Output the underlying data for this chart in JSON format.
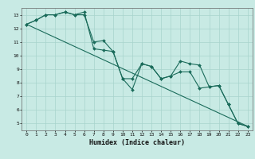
{
  "title": "",
  "xlabel": "Humidex (Indice chaleur)",
  "ylabel": "",
  "background_color": "#c8eae4",
  "grid_color": "#a8d4cc",
  "line_color": "#1a6b5a",
  "series1_x": [
    0,
    1,
    2,
    3,
    4,
    5,
    6,
    7,
    8,
    9,
    10,
    11,
    12,
    13,
    14,
    15,
    16,
    17,
    18,
    19,
    20,
    21,
    22,
    23
  ],
  "series1_y": [
    12.3,
    12.6,
    13.0,
    13.0,
    13.2,
    13.0,
    13.2,
    10.5,
    10.4,
    10.3,
    8.3,
    7.5,
    9.4,
    9.2,
    8.3,
    8.5,
    9.6,
    9.4,
    9.3,
    7.7,
    7.8,
    6.4,
    5.0,
    4.8
  ],
  "series2_x": [
    0,
    1,
    2,
    3,
    4,
    5,
    6,
    7,
    8,
    9,
    10,
    11,
    12,
    13,
    14,
    15,
    16,
    17,
    18,
    19,
    20,
    21,
    22,
    23
  ],
  "series2_y": [
    12.3,
    12.6,
    13.0,
    13.0,
    13.2,
    13.0,
    13.0,
    11.0,
    11.1,
    10.3,
    8.3,
    8.3,
    9.4,
    9.2,
    8.3,
    8.5,
    8.8,
    8.8,
    7.6,
    7.7,
    7.8,
    6.4,
    5.0,
    4.8
  ],
  "series3_x": [
    0,
    23
  ],
  "series3_y": [
    12.3,
    4.8
  ],
  "ylim": [
    4.5,
    13.5
  ],
  "xlim": [
    -0.5,
    23.5
  ],
  "yticks": [
    5,
    6,
    7,
    8,
    9,
    10,
    11,
    12,
    13
  ],
  "xticks": [
    0,
    1,
    2,
    3,
    4,
    5,
    6,
    7,
    8,
    9,
    10,
    11,
    12,
    13,
    14,
    15,
    16,
    17,
    18,
    19,
    20,
    21,
    22,
    23
  ],
  "marker_size": 2.0,
  "line_width": 0.8,
  "tick_fontsize": 4.5,
  "xlabel_fontsize": 6.0
}
